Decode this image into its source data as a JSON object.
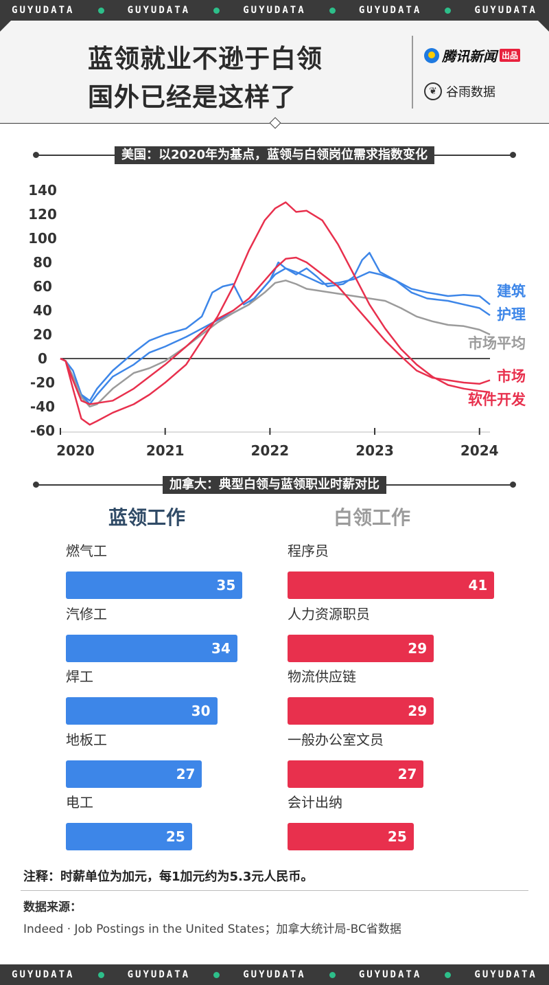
{
  "banner": {
    "words": [
      "GUYUDATA",
      "GUYUDATA",
      "GUYUDATA",
      "GUYUDATA",
      "GUYUDATA"
    ]
  },
  "header": {
    "title_line1": "蓝领就业不逊于白领",
    "title_line2": "国外已经是这样了",
    "logo_tencent": "腾讯新闻",
    "logo_tencent_tag": "出品",
    "logo_guyu": "谷雨数据"
  },
  "section1": {
    "label": "美国：以2020年为基点，蓝领与白领岗位需求指数变化"
  },
  "section2": {
    "label": "加拿大：典型白领与蓝领职业时薪对比"
  },
  "colors": {
    "blue": "#3d86e8",
    "red": "#e8304d",
    "gray": "#9b9b9b",
    "dark": "#3a3a3a"
  },
  "chart_data": [
    {
      "type": "line",
      "title": "美国：以2020年为基点，蓝领与白领岗位需求指数变化",
      "x_ticks": [
        "2020",
        "2021",
        "2022",
        "2023",
        "2024"
      ],
      "y_ticks": [
        140,
        120,
        100,
        80,
        60,
        40,
        20,
        0,
        -20,
        -40,
        -60
      ],
      "ylim": [
        -60,
        140
      ],
      "xlim": [
        2020.0,
        2024.1
      ],
      "series": [
        {
          "name": "建筑",
          "color": "#3d86e8",
          "points": [
            [
              2020.0,
              0
            ],
            [
              2020.05,
              -2
            ],
            [
              2020.12,
              -10
            ],
            [
              2020.2,
              -30
            ],
            [
              2020.28,
              -35
            ],
            [
              2020.35,
              -25
            ],
            [
              2020.5,
              -10
            ],
            [
              2020.7,
              5
            ],
            [
              2020.85,
              15
            ],
            [
              2021.0,
              20
            ],
            [
              2021.2,
              25
            ],
            [
              2021.35,
              35
            ],
            [
              2021.45,
              55
            ],
            [
              2021.55,
              60
            ],
            [
              2021.65,
              62
            ],
            [
              2021.75,
              45
            ],
            [
              2021.85,
              50
            ],
            [
              2022.0,
              65
            ],
            [
              2022.08,
              80
            ],
            [
              2022.15,
              75
            ],
            [
              2022.25,
              70
            ],
            [
              2022.35,
              75
            ],
            [
              2022.45,
              68
            ],
            [
              2022.55,
              60
            ],
            [
              2022.7,
              62
            ],
            [
              2022.8,
              68
            ],
            [
              2022.88,
              82
            ],
            [
              2022.95,
              88
            ],
            [
              2023.05,
              72
            ],
            [
              2023.2,
              65
            ],
            [
              2023.35,
              58
            ],
            [
              2023.5,
              55
            ],
            [
              2023.7,
              52
            ],
            [
              2023.85,
              53
            ],
            [
              2024.0,
              52
            ],
            [
              2024.1,
              45
            ]
          ]
        },
        {
          "name": "护理",
          "color": "#3d86e8",
          "points": [
            [
              2020.0,
              0
            ],
            [
              2020.05,
              -2
            ],
            [
              2020.12,
              -15
            ],
            [
              2020.2,
              -30
            ],
            [
              2020.28,
              -38
            ],
            [
              2020.35,
              -30
            ],
            [
              2020.5,
              -15
            ],
            [
              2020.7,
              -5
            ],
            [
              2020.85,
              5
            ],
            [
              2021.0,
              10
            ],
            [
              2021.2,
              18
            ],
            [
              2021.35,
              25
            ],
            [
              2021.5,
              32
            ],
            [
              2021.65,
              38
            ],
            [
              2021.8,
              45
            ],
            [
              2021.95,
              60
            ],
            [
              2022.05,
              70
            ],
            [
              2022.15,
              75
            ],
            [
              2022.25,
              72
            ],
            [
              2022.35,
              68
            ],
            [
              2022.5,
              62
            ],
            [
              2022.65,
              63
            ],
            [
              2022.8,
              66
            ],
            [
              2022.95,
              72
            ],
            [
              2023.05,
              70
            ],
            [
              2023.2,
              65
            ],
            [
              2023.35,
              55
            ],
            [
              2023.5,
              50
            ],
            [
              2023.7,
              48
            ],
            [
              2023.85,
              45
            ],
            [
              2024.0,
              42
            ],
            [
              2024.1,
              36
            ]
          ]
        },
        {
          "name": "市场平均",
          "color": "#9b9b9b",
          "points": [
            [
              2020.0,
              0
            ],
            [
              2020.05,
              -2
            ],
            [
              2020.12,
              -15
            ],
            [
              2020.2,
              -32
            ],
            [
              2020.28,
              -40
            ],
            [
              2020.35,
              -38
            ],
            [
              2020.5,
              -25
            ],
            [
              2020.7,
              -12
            ],
            [
              2020.85,
              -8
            ],
            [
              2021.0,
              -2
            ],
            [
              2021.2,
              10
            ],
            [
              2021.35,
              20
            ],
            [
              2021.5,
              30
            ],
            [
              2021.65,
              38
            ],
            [
              2021.8,
              45
            ],
            [
              2021.95,
              55
            ],
            [
              2022.05,
              63
            ],
            [
              2022.15,
              65
            ],
            [
              2022.25,
              62
            ],
            [
              2022.35,
              58
            ],
            [
              2022.5,
              56
            ],
            [
              2022.65,
              54
            ],
            [
              2022.8,
              52
            ],
            [
              2022.95,
              50
            ],
            [
              2023.1,
              48
            ],
            [
              2023.25,
              42
            ],
            [
              2023.4,
              35
            ],
            [
              2023.55,
              31
            ],
            [
              2023.7,
              28
            ],
            [
              2023.85,
              27
            ],
            [
              2024.0,
              24
            ],
            [
              2024.1,
              20
            ]
          ]
        },
        {
          "name": "市场",
          "color": "#e8304d",
          "points": [
            [
              2020.0,
              0
            ],
            [
              2020.05,
              -2
            ],
            [
              2020.12,
              -18
            ],
            [
              2020.2,
              -35
            ],
            [
              2020.28,
              -38
            ],
            [
              2020.35,
              -37
            ],
            [
              2020.5,
              -35
            ],
            [
              2020.7,
              -25
            ],
            [
              2020.85,
              -15
            ],
            [
              2021.0,
              -5
            ],
            [
              2021.2,
              10
            ],
            [
              2021.35,
              22
            ],
            [
              2021.5,
              33
            ],
            [
              2021.65,
              40
            ],
            [
              2021.8,
              50
            ],
            [
              2021.95,
              65
            ],
            [
              2022.05,
              75
            ],
            [
              2022.15,
              83
            ],
            [
              2022.25,
              84
            ],
            [
              2022.35,
              80
            ],
            [
              2022.5,
              70
            ],
            [
              2022.65,
              60
            ],
            [
              2022.8,
              45
            ],
            [
              2022.95,
              30
            ],
            [
              2023.1,
              15
            ],
            [
              2023.25,
              2
            ],
            [
              2023.4,
              -10
            ],
            [
              2023.55,
              -16
            ],
            [
              2023.7,
              -18
            ],
            [
              2023.85,
              -20
            ],
            [
              2024.0,
              -21
            ],
            [
              2024.1,
              -18
            ]
          ]
        },
        {
          "name": "软件开发",
          "color": "#e8304d",
          "points": [
            [
              2020.0,
              0
            ],
            [
              2020.05,
              -2
            ],
            [
              2020.12,
              -25
            ],
            [
              2020.2,
              -50
            ],
            [
              2020.28,
              -55
            ],
            [
              2020.35,
              -52
            ],
            [
              2020.5,
              -45
            ],
            [
              2020.7,
              -38
            ],
            [
              2020.85,
              -30
            ],
            [
              2021.0,
              -20
            ],
            [
              2021.2,
              -5
            ],
            [
              2021.35,
              15
            ],
            [
              2021.5,
              35
            ],
            [
              2021.65,
              60
            ],
            [
              2021.8,
              90
            ],
            [
              2021.95,
              115
            ],
            [
              2022.05,
              125
            ],
            [
              2022.15,
              130
            ],
            [
              2022.25,
              122
            ],
            [
              2022.35,
              123
            ],
            [
              2022.5,
              115
            ],
            [
              2022.65,
              95
            ],
            [
              2022.8,
              70
            ],
            [
              2022.95,
              45
            ],
            [
              2023.1,
              25
            ],
            [
              2023.25,
              8
            ],
            [
              2023.4,
              -5
            ],
            [
              2023.55,
              -15
            ],
            [
              2023.7,
              -22
            ],
            [
              2023.85,
              -25
            ],
            [
              2024.0,
              -27
            ],
            [
              2024.1,
              -28
            ]
          ]
        }
      ]
    },
    {
      "type": "bar",
      "title": "加拿大：典型白领与蓝领职业时薪对比",
      "groups": [
        {
          "name": "蓝领工作",
          "color": "#3d86e8",
          "categories": [
            "燃气工",
            "汽修工",
            "焊工",
            "地板工",
            "电工"
          ],
          "values": [
            35,
            34,
            30,
            27,
            25
          ]
        },
        {
          "name": "白领工作",
          "color": "#e8304d",
          "categories": [
            "程序员",
            "人力资源职员",
            "物流供应链",
            "一般办公室文员",
            "会计出纳"
          ],
          "values": [
            41,
            29,
            29,
            27,
            25
          ]
        }
      ]
    }
  ],
  "note": "注释：时薪单位为加元，每1加元约为5.3元人民币。",
  "source": {
    "title": "数据来源：",
    "text": "Indeed · Job Postings in the United States；加拿大统计局-BC省数据"
  }
}
